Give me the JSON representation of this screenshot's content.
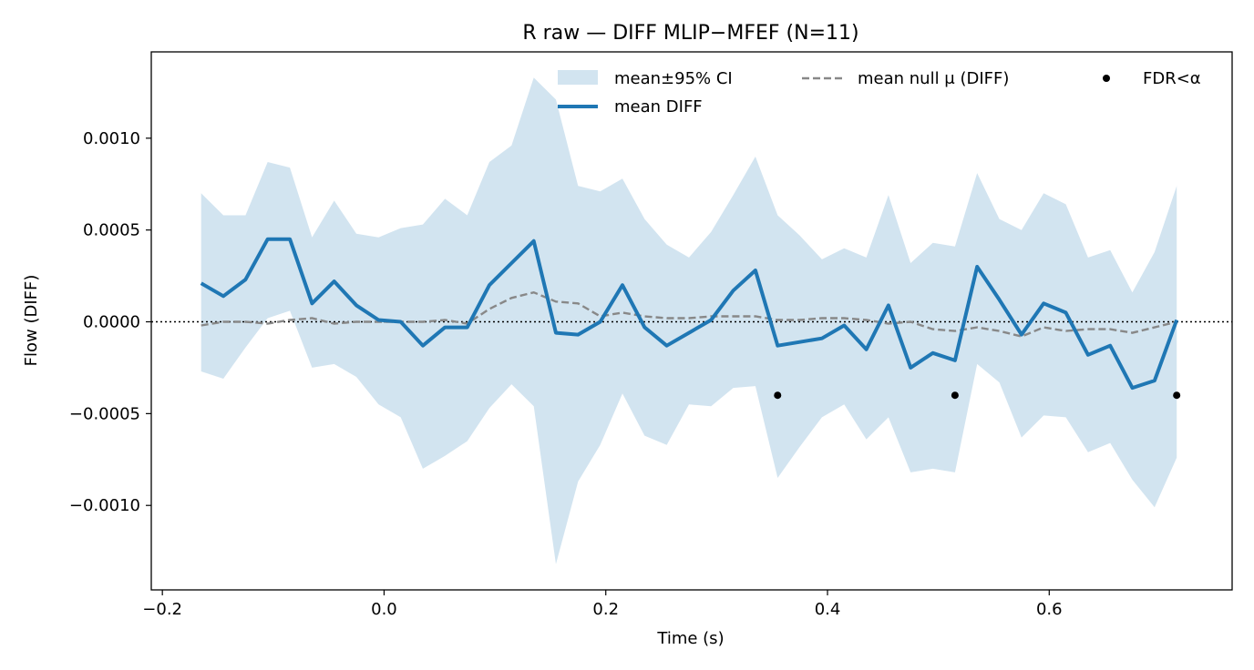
{
  "chart_data": {
    "type": "line",
    "title": "R raw — DIFF MLIP−MFEF (N=11)",
    "xlabel": "Time (s)",
    "ylabel": "Flow (DIFF)",
    "xlim": [
      -0.21,
      0.765
    ],
    "ylim": [
      -0.00146,
      0.00147
    ],
    "xticks": [
      -0.2,
      0.0,
      0.2,
      0.4,
      0.6
    ],
    "xtick_labels": [
      "−0.2",
      "0.0",
      "0.2",
      "0.4",
      "0.6"
    ],
    "yticks": [
      0.001,
      0.0005,
      0.0,
      -0.0005,
      -0.001
    ],
    "ytick_labels": [
      "0.0010",
      "0.0005",
      "0.0000",
      "−0.0005",
      "−0.0010"
    ],
    "grid": false,
    "legend_position": "top-right",
    "reference_line_y": 0.0,
    "x": [
      -0.165,
      -0.145,
      -0.125,
      -0.105,
      -0.085,
      -0.065,
      -0.045,
      -0.025,
      -0.005,
      0.015,
      0.035,
      0.055,
      0.075,
      0.095,
      0.115,
      0.135,
      0.155,
      0.175,
      0.195,
      0.215,
      0.235,
      0.255,
      0.275,
      0.295,
      0.315,
      0.335,
      0.355,
      0.375,
      0.395,
      0.415,
      0.435,
      0.455,
      0.475,
      0.495,
      0.515,
      0.535,
      0.555,
      0.575,
      0.595,
      0.615,
      0.635,
      0.655,
      0.675,
      0.695,
      0.715
    ],
    "series": [
      {
        "name": "mean±95% CI",
        "kind": "band",
        "color": "#1f77b4",
        "upper": [
          0.0007,
          0.00058,
          0.00058,
          0.00087,
          0.00084,
          0.00046,
          0.00066,
          0.00048,
          0.00046,
          0.00051,
          0.00053,
          0.00067,
          0.00058,
          0.00087,
          0.00096,
          0.00133,
          0.00121,
          0.00074,
          0.00071,
          0.00078,
          0.00056,
          0.00042,
          0.00035,
          0.00049,
          0.00069,
          0.0009,
          0.00058,
          0.00047,
          0.00034,
          0.0004,
          0.00035,
          0.00069,
          0.00032,
          0.00043,
          0.00041,
          0.00081,
          0.00056,
          0.0005,
          0.0007,
          0.00064,
          0.00035,
          0.00039,
          0.00016,
          0.00038,
          0.00074
        ],
        "lower": [
          -0.00027,
          -0.00031,
          -0.00014,
          2e-05,
          6e-05,
          -0.00025,
          -0.00023,
          -0.0003,
          -0.00045,
          -0.00052,
          -0.0008,
          -0.00073,
          -0.00065,
          -0.00047,
          -0.00034,
          -0.00046,
          -0.00132,
          -0.00087,
          -0.00067,
          -0.00039,
          -0.00062,
          -0.00067,
          -0.00045,
          -0.00046,
          -0.00036,
          -0.00035,
          -0.00085,
          -0.00068,
          -0.00052,
          -0.00045,
          -0.00064,
          -0.00052,
          -0.00082,
          -0.0008,
          -0.00082,
          -0.00023,
          -0.00033,
          -0.00063,
          -0.00051,
          -0.00052,
          -0.00071,
          -0.00066,
          -0.00086,
          -0.00101,
          -0.00074
        ]
      },
      {
        "name": "mean DIFF",
        "kind": "line",
        "color": "#1f77b4",
        "values": [
          0.00021,
          0.00014,
          0.00023,
          0.00045,
          0.00045,
          0.0001,
          0.00022,
          9e-05,
          1e-05,
          0.0,
          -0.00013,
          -3e-05,
          -3e-05,
          0.0002,
          0.00032,
          0.00044,
          -6e-05,
          -7e-05,
          0.0,
          0.0002,
          -3e-05,
          -0.00013,
          -6e-05,
          1e-05,
          0.00017,
          0.00028,
          -0.00013,
          -0.00011,
          -9e-05,
          -2e-05,
          -0.00015,
          9e-05,
          -0.00025,
          -0.00017,
          -0.00021,
          0.0003,
          0.00012,
          -7e-05,
          0.0001,
          5e-05,
          -0.00018,
          -0.00013,
          -0.00036,
          -0.00032,
          1e-05
        ]
      },
      {
        "name": "mean null μ (DIFF)",
        "kind": "dashed",
        "color": "#888888",
        "values": [
          -2e-05,
          0.0,
          0.0,
          -1e-05,
          1e-05,
          2e-05,
          -1e-05,
          0.0,
          0.0,
          0.0,
          0.0,
          1e-05,
          -1e-05,
          7e-05,
          0.00013,
          0.00016,
          0.00011,
          0.0001,
          3e-05,
          5e-05,
          3e-05,
          2e-05,
          2e-05,
          3e-05,
          3e-05,
          3e-05,
          1e-05,
          1e-05,
          2e-05,
          2e-05,
          1e-05,
          -1e-05,
          0.0,
          -4e-05,
          -5e-05,
          -3e-05,
          -5e-05,
          -8e-05,
          -3e-05,
          -5e-05,
          -4e-05,
          -4e-05,
          -6e-05,
          -3e-05,
          0.0
        ]
      },
      {
        "name": "FDR<α",
        "kind": "markers",
        "color": "#000000",
        "points": [
          {
            "x": 0.355,
            "y": -0.0004
          },
          {
            "x": 0.515,
            "y": -0.0004
          },
          {
            "x": 0.715,
            "y": -0.0004
          }
        ]
      }
    ]
  }
}
